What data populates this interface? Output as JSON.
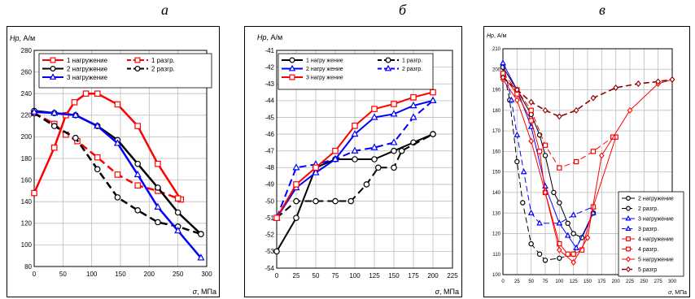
{
  "panel_letters": [
    "а",
    "б",
    "в"
  ],
  "chart_data": [
    {
      "type": "line",
      "ylabel_main": "Hp",
      "ylabel_unit": ", А/м",
      "xlabel_main": "σ",
      "xlabel_unit": ", МПа",
      "xlim": [
        0,
        300
      ],
      "ylim": [
        80,
        280
      ],
      "xticks": [
        0,
        50,
        100,
        150,
        200,
        250,
        300
      ],
      "yticks": [
        80,
        100,
        120,
        140,
        160,
        180,
        200,
        220,
        240,
        260,
        280
      ],
      "grid": true,
      "legend_position": "top",
      "legend_columns": 2,
      "series": [
        {
          "name": "1 нагружение",
          "color": "#ff0000",
          "dash": "",
          "marker": "square",
          "width": 2.5,
          "points": [
            [
              0,
              148
            ],
            [
              35,
              190
            ],
            [
              55,
              220
            ],
            [
              70,
              232
            ],
            [
              90,
              240
            ],
            [
              110,
              240
            ],
            [
              145,
              230
            ],
            [
              180,
              210
            ],
            [
              215,
              175
            ],
            [
              255,
              142
            ]
          ]
        },
        {
          "name": "1 разгр.",
          "color": "#ff0000",
          "dash": "9,5",
          "marker": "square",
          "width": 2.5,
          "points": [
            [
              0,
              222
            ],
            [
              35,
              212
            ],
            [
              55,
              202
            ],
            [
              75,
              196
            ],
            [
              110,
              181
            ],
            [
              145,
              165
            ],
            [
              180,
              155
            ],
            [
              215,
              150
            ],
            [
              250,
              143
            ]
          ]
        },
        {
          "name": "2 нагружение",
          "color": "#000000",
          "dash": "",
          "marker": "circle",
          "width": 2.5,
          "points": [
            [
              0,
              224
            ],
            [
              35,
              222
            ],
            [
              72,
              220
            ],
            [
              110,
              210
            ],
            [
              145,
              197
            ],
            [
              180,
              175
            ],
            [
              215,
              153
            ],
            [
              250,
              130
            ],
            [
              290,
              110
            ]
          ]
        },
        {
          "name": "2 разгр.",
          "color": "#000000",
          "dash": "9,5",
          "marker": "circle",
          "width": 2.5,
          "points": [
            [
              0,
              222
            ],
            [
              35,
              210
            ],
            [
              72,
              199
            ],
            [
              110,
              170
            ],
            [
              145,
              144
            ],
            [
              180,
              132
            ],
            [
              215,
              121
            ],
            [
              250,
              117
            ],
            [
              290,
              110
            ]
          ]
        },
        {
          "name": "3 нагружение",
          "color": "#0000ff",
          "dash": "",
          "marker": "triangle",
          "width": 2.5,
          "points": [
            [
              0,
              223
            ],
            [
              35,
              222
            ],
            [
              72,
              220
            ],
            [
              110,
              210
            ],
            [
              145,
              194
            ],
            [
              180,
              165
            ],
            [
              215,
              135
            ],
            [
              250,
              113
            ],
            [
              290,
              88
            ]
          ]
        }
      ]
    },
    {
      "type": "line",
      "ylabel_main": "Hp",
      "ylabel_unit": ", А/м",
      "xlabel_main": "σ",
      "xlabel_unit": ", МПа",
      "xlim": [
        0,
        225
      ],
      "ylim": [
        -54,
        -41
      ],
      "xticks": [
        0,
        25,
        50,
        75,
        100,
        125,
        150,
        175,
        200,
        225
      ],
      "yticks": [
        -54,
        -53,
        -52,
        -51,
        -50,
        -49,
        -48,
        -47,
        -46,
        -45,
        -44,
        -43,
        -42,
        -41
      ],
      "grid": true,
      "legend_position": "top",
      "legend_columns": 2,
      "series": [
        {
          "name": "1 нагру жение",
          "color": "#000000",
          "dash": "",
          "marker": "circle",
          "width": 2,
          "points": [
            [
              0,
              -53
            ],
            [
              25,
              -51
            ],
            [
              50,
              -48
            ],
            [
              75,
              -47.5
            ],
            [
              100,
              -47.5
            ],
            [
              125,
              -47.5
            ],
            [
              150,
              -47
            ],
            [
              175,
              -46.5
            ],
            [
              200,
              -46
            ]
          ]
        },
        {
          "name": "1 разгр.",
          "color": "#000000",
          "dash": "9,5",
          "marker": "circle",
          "width": 2,
          "points": [
            [
              0,
              -51
            ],
            [
              25,
              -50
            ],
            [
              50,
              -50
            ],
            [
              75,
              -50
            ],
            [
              95,
              -50
            ],
            [
              115,
              -49
            ],
            [
              130,
              -48
            ],
            [
              150,
              -48
            ],
            [
              160,
              -47
            ],
            [
              200,
              -46
            ]
          ]
        },
        {
          "name": "2 нагру жение",
          "color": "#0000ff",
          "dash": "",
          "marker": "triangle",
          "width": 2,
          "points": [
            [
              0,
              -51
            ],
            [
              25,
              -49.2
            ],
            [
              50,
              -48.3
            ],
            [
              75,
              -47.5
            ],
            [
              100,
              -46
            ],
            [
              125,
              -45
            ],
            [
              150,
              -44.8
            ],
            [
              175,
              -44.3
            ],
            [
              200,
              -44
            ]
          ]
        },
        {
          "name": "2 разгр.",
          "color": "#0000ff",
          "dash": "9,5",
          "marker": "triangle",
          "width": 2,
          "points": [
            [
              0,
              -51
            ],
            [
              25,
              -48
            ],
            [
              50,
              -47.8
            ],
            [
              75,
              -47.5
            ],
            [
              100,
              -47
            ],
            [
              125,
              -46.8
            ],
            [
              150,
              -46.5
            ],
            [
              175,
              -45
            ],
            [
              200,
              -44
            ]
          ]
        },
        {
          "name": "3 нагру жение",
          "color": "#ff0000",
          "dash": "",
          "marker": "square",
          "width": 2,
          "points": [
            [
              0,
              -51
            ],
            [
              25,
              -49
            ],
            [
              50,
              -48
            ],
            [
              75,
              -47
            ],
            [
              100,
              -45.5
            ],
            [
              125,
              -44.5
            ],
            [
              150,
              -44.2
            ],
            [
              175,
              -43.8
            ],
            [
              200,
              -43.5
            ]
          ]
        }
      ]
    },
    {
      "type": "line",
      "ylabel_main": "Hp",
      "ylabel_unit": ", А/м",
      "xlabel_main": "σ",
      "xlabel_unit": ", МПа",
      "xlim": [
        0,
        300
      ],
      "ylim": [
        100,
        210
      ],
      "xticks": [
        0,
        25,
        50,
        75,
        100,
        125,
        150,
        175,
        200,
        225,
        250,
        275,
        300
      ],
      "yticks": [
        100,
        110,
        120,
        130,
        140,
        150,
        160,
        170,
        180,
        190,
        200,
        210
      ],
      "grid": true,
      "legend_position": "bottom-right",
      "legend_columns": 1,
      "series": [
        {
          "name": "2 нагружение",
          "color": "#000000",
          "dash": "",
          "marker": "circle",
          "width": 1,
          "points": [
            [
              0,
              201
            ],
            [
              25,
              190
            ],
            [
              50,
              178
            ],
            [
              65,
              168
            ],
            [
              75,
              158
            ],
            [
              90,
              140
            ],
            [
              100,
              135
            ],
            [
              115,
              125
            ],
            [
              125,
              120
            ],
            [
              140,
              118
            ],
            [
              160,
              130
            ]
          ]
        },
        {
          "name": "2 разгр.",
          "color": "#000000",
          "dash": "7,4",
          "marker": "circle",
          "width": 1,
          "points": [
            [
              0,
              201
            ],
            [
              12,
              185
            ],
            [
              25,
              155
            ],
            [
              35,
              135
            ],
            [
              50,
              115
            ],
            [
              65,
              110
            ],
            [
              75,
              107
            ],
            [
              100,
              108
            ],
            [
              125,
              110
            ],
            [
              160,
              130
            ]
          ]
        },
        {
          "name": "3 нагружение",
          "color": "#0000ff",
          "dash": "",
          "marker": "triangle",
          "width": 1,
          "points": [
            [
              0,
              203
            ],
            [
              25,
              190
            ],
            [
              50,
              172
            ],
            [
              75,
              143
            ],
            [
              100,
              125
            ],
            [
              115,
              119
            ],
            [
              130,
              113
            ],
            [
              160,
              130
            ]
          ]
        },
        {
          "name": "3 разгр.",
          "color": "#0000ff",
          "dash": "7,4",
          "marker": "triangle",
          "width": 1,
          "points": [
            [
              0,
              203
            ],
            [
              15,
              185
            ],
            [
              25,
              168
            ],
            [
              37,
              150
            ],
            [
              50,
              130
            ],
            [
              65,
              125
            ],
            [
              100,
              125
            ],
            [
              125,
              129
            ],
            [
              160,
              133
            ]
          ]
        },
        {
          "name": "4 нагружение",
          "color": "#ff0000",
          "dash": "",
          "marker": "square",
          "width": 1,
          "points": [
            [
              0,
              197
            ],
            [
              25,
              188
            ],
            [
              50,
              175
            ],
            [
              65,
              160
            ],
            [
              75,
              140
            ],
            [
              100,
              115
            ],
            [
              115,
              110
            ],
            [
              125,
              110
            ],
            [
              140,
              112
            ],
            [
              160,
              133
            ],
            [
              200,
              167
            ]
          ]
        },
        {
          "name": "4 разгр.",
          "color": "#ff0000",
          "dash": "7,4",
          "marker": "square",
          "width": 1,
          "points": [
            [
              0,
              198
            ],
            [
              25,
              190
            ],
            [
              50,
              180
            ],
            [
              75,
              163
            ],
            [
              100,
              152
            ],
            [
              130,
              155
            ],
            [
              160,
              160
            ],
            [
              195,
              167
            ]
          ]
        },
        {
          "name": "5 нагружение",
          "color": "#ff0000",
          "dash": "",
          "marker": "diamond",
          "width": 1,
          "points": [
            [
              0,
              195
            ],
            [
              25,
              185
            ],
            [
              50,
              165
            ],
            [
              75,
              140
            ],
            [
              100,
              112
            ],
            [
              125,
              106
            ],
            [
              150,
              118
            ],
            [
              175,
              158
            ],
            [
              225,
              180
            ],
            [
              275,
              193
            ],
            [
              300,
              195
            ]
          ]
        },
        {
          "name": "5 разгр",
          "color": "#8b0000",
          "dash": "7,4",
          "marker": "diamond",
          "width": 1.6,
          "points": [
            [
              0,
              196
            ],
            [
              25,
              190
            ],
            [
              50,
              184
            ],
            [
              75,
              180
            ],
            [
              100,
              177
            ],
            [
              130,
              180
            ],
            [
              160,
              186
            ],
            [
              200,
              191
            ],
            [
              240,
              193
            ],
            [
              275,
              194
            ],
            [
              300,
              195
            ]
          ]
        }
      ]
    }
  ]
}
